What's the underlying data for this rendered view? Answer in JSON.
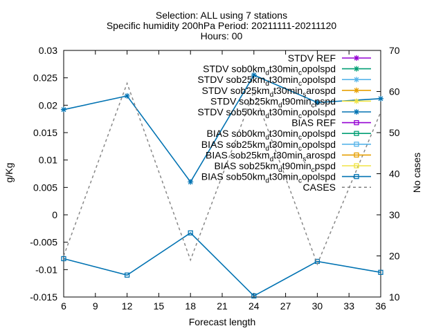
{
  "chart_data": {
    "type": "line",
    "title_lines": [
      "Selection: ALL using     7 stations",
      "Specific humidity 200hPa   Period: 20211111-20211120",
      "Hours: 00"
    ],
    "xlabel": "Forecast length",
    "ylabel": "g/Kg",
    "y2label": "No cases",
    "x": [
      6,
      12,
      18,
      24,
      30,
      36
    ],
    "xticks": [
      6,
      9,
      12,
      15,
      18,
      21,
      24,
      27,
      30,
      33,
      36
    ],
    "xlim": [
      6,
      36
    ],
    "ylim": [
      -0.015,
      0.03
    ],
    "yticks": [
      -0.015,
      -0.01,
      -0.005,
      0,
      0.005,
      0.01,
      0.015,
      0.02,
      0.025,
      0.03
    ],
    "ytick_labels": [
      "-0.015",
      "-0.01",
      "-0.005",
      "0",
      "0.005",
      "0.01",
      "0.015",
      "0.02",
      "0.025",
      "0.03"
    ],
    "y2lim": [
      10,
      70
    ],
    "y2ticks": [
      10,
      20,
      30,
      40,
      50,
      60,
      70
    ],
    "grid": false,
    "legend_placement": "top-right",
    "series": [
      {
        "name": "STDV REF",
        "color": "#9400d3",
        "marker": "star",
        "values": null
      },
      {
        "name": "STDV sob0km_dt30min_copolspd",
        "color": "#009e73",
        "marker": "star",
        "values": null
      },
      {
        "name": "STDV sob25km_dt30min_copolspd",
        "color": "#56b4e9",
        "marker": "star",
        "values": null
      },
      {
        "name": "STDV sob25km_dt30min_sarospd",
        "color": "#e69f00",
        "marker": "star",
        "values": null
      },
      {
        "name": "STDV sob25km_dt90min_cpspd",
        "color": "#f0e442",
        "marker": "star",
        "values": null
      },
      {
        "name": "STDV sob50km_dt30min_copolspd",
        "color": "#0072b2",
        "marker": "star",
        "values": [
          0.0192,
          0.0217,
          0.006,
          0.0255,
          0.0205,
          0.0212
        ]
      },
      {
        "name": "BIAS REF",
        "color": "#9400d3",
        "marker": "square",
        "values": null
      },
      {
        "name": "BIAS sob0km_dt30min_copolspd",
        "color": "#009e73",
        "marker": "square",
        "values": null
      },
      {
        "name": "BIAS sob25km_dt30min_copolspd",
        "color": "#56b4e9",
        "marker": "square",
        "values": null
      },
      {
        "name": "BIAS sob25km_dt30min_sarospd",
        "color": "#e69f00",
        "marker": "square",
        "values": null
      },
      {
        "name": "BIAS sob25km_dt90min_cpspd",
        "color": "#f0e442",
        "marker": "square",
        "values": null
      },
      {
        "name": "BIAS sob50km_dt30min_copolspd",
        "color": "#0072b2",
        "marker": "square",
        "values": [
          -0.008,
          -0.011,
          -0.0033,
          -0.0148,
          -0.0085,
          -0.0105
        ]
      },
      {
        "name": "CASES",
        "color": "#888888",
        "marker": "none",
        "dashed": true,
        "axis": "y2",
        "values": [
          20,
          62,
          19,
          60,
          18,
          55
        ]
      }
    ],
    "legend": [
      {
        "main": "STDV REF"
      },
      {
        "main": "STDV sob0km",
        "sub": "d",
        "rest": "t30min",
        "sub2": "c",
        "rest2": "opolspd"
      },
      {
        "main": "STDV sob25km",
        "sub": "d",
        "rest": "t30min",
        "sub2": "c",
        "rest2": "opolspd"
      },
      {
        "main": "STDV sob25km",
        "sub": "d",
        "rest": "t30min",
        "sub2": "s",
        "rest2": "arospd"
      },
      {
        "main": "STDV sob25km",
        "sub": "d",
        "rest": "t90min",
        "sub2": "c",
        "rest2": "pspd"
      },
      {
        "main": "STDV sob50km",
        "sub": "d",
        "rest": "t30min",
        "sub2": "c",
        "rest2": "opolspd"
      },
      {
        "main": "BIAS REF"
      },
      {
        "main": "BIAS sob0km",
        "sub": "d",
        "rest": "t30min",
        "sub2": "c",
        "rest2": "opolspd"
      },
      {
        "main": "BIAS sob25km",
        "sub": "d",
        "rest": "t30min",
        "sub2": "c",
        "rest2": "opolspd"
      },
      {
        "main": "BIAS sob25km",
        "sub": "d",
        "rest": "t30min",
        "sub2": "s",
        "rest2": "arospd"
      },
      {
        "main": "BIAS sob25km",
        "sub": "d",
        "rest": "t90min",
        "sub2": "c",
        "rest2": "pspd"
      },
      {
        "main": "BIAS sob50km",
        "sub": "d",
        "rest": "t30min",
        "sub2": "c",
        "rest2": "opolspd"
      },
      {
        "main": "CASES"
      }
    ]
  }
}
